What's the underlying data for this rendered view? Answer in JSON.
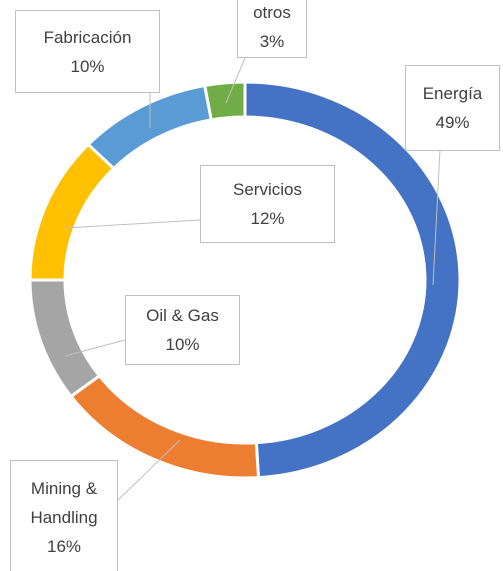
{
  "chart_data": {
    "type": "donut",
    "categories": [
      "Energía",
      "Mining & Handling",
      "Oil & Gas",
      "Servicios",
      "Fabricación",
      "otros"
    ],
    "values": [
      49,
      16,
      10,
      12,
      10,
      3
    ],
    "value_labels": [
      "49%",
      "16%",
      "10%",
      "12%",
      "10%",
      "3%"
    ],
    "colors": [
      "#4472c4",
      "#ed7d31",
      "#a5a5a5",
      "#ffc000",
      "#5b9bd5",
      "#70ad47"
    ]
  }
}
